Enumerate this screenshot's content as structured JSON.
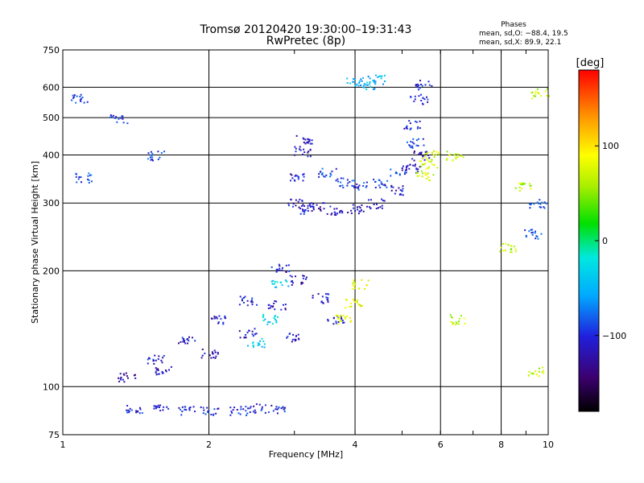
{
  "title_line1": "Tromsø 20120420 19:30:00–19:31:43",
  "title_line2": "RwPretec (8p)",
  "stats": {
    "heading": "Phases",
    "line_o": "mean, sd,O: −88.4, 19.5",
    "line_x": "mean, sd,X:  89.9, 22.1"
  },
  "colorbar": {
    "title": "[deg]",
    "range": [
      -180,
      180
    ],
    "ticks": [
      100,
      0,
      -100
    ],
    "tick_labels": [
      "100",
      "0",
      "−100"
    ],
    "colormap": "rainbow (black → purple → blue → cyan → green → yellow → orange → red)"
  },
  "chart_data": {
    "type": "scatter",
    "xlabel": "Frequency [MHz]",
    "ylabel": "Stationary phase Virtual Height [km]",
    "xscale": "log",
    "yscale": "log",
    "xlim": [
      1,
      10
    ],
    "ylim": [
      75,
      750
    ],
    "xticks": [
      1,
      2,
      4,
      6,
      8,
      10
    ],
    "xtick_labels": [
      "1",
      "2",
      "4",
      "6",
      "8",
      "10"
    ],
    "yticks": [
      75,
      100,
      200,
      300,
      400,
      500,
      600,
      750
    ],
    "ytick_labels": [
      "75",
      "100",
      "200",
      "300",
      "400",
      "500",
      "600",
      "750"
    ],
    "grid": true,
    "color_by": "phase (deg)",
    "groups": [
      {
        "f": [
          1.35,
          1.6,
          2.0,
          2.4,
          2.75
        ],
        "h": [
          106,
          111,
          122,
          138,
          163
        ],
        "phase": -115
      },
      {
        "f": [
          1.55,
          1.8,
          2.1,
          2.4,
          2.8
        ],
        "h": [
          118,
          132,
          150,
          168,
          205
        ],
        "phase": -108
      },
      {
        "f": [
          2.5,
          2.65,
          2.8
        ],
        "h": [
          130,
          150,
          185
        ],
        "phase": -35
      },
      {
        "f": [
          1.4,
          1.6,
          1.8,
          2.0,
          2.3,
          2.5,
          2.75
        ],
        "h": [
          88,
          88,
          87,
          87,
          87,
          88,
          88
        ],
        "phase": -102
      },
      {
        "f": [
          2.95,
          3.05,
          3.4,
          3.65
        ],
        "h": [
          135,
          190,
          170,
          150
        ],
        "phase": -110
      },
      {
        "f": [
          3.0,
          3.05,
          3.1,
          3.15,
          3.2
        ],
        "h": [
          300,
          350,
          410,
          440,
          290
        ],
        "phase": -112
      },
      {
        "f": [
          3.3,
          3.6,
          4.0,
          4.4,
          4.8,
          5.2,
          5.45
        ],
        "h": [
          295,
          288,
          290,
          300,
          325,
          370,
          400
        ],
        "phase": -115
      },
      {
        "f": [
          3.5,
          3.8,
          4.1,
          4.5,
          4.9,
          5.3
        ],
        "h": [
          360,
          340,
          335,
          340,
          365,
          430
        ],
        "phase": -95
      },
      {
        "f": [
          5.25,
          5.4,
          5.5
        ],
        "h": [
          480,
          560,
          610
        ],
        "phase": -105
      },
      {
        "f": [
          3.75,
          3.95,
          4.1
        ],
        "h": [
          150,
          165,
          185
        ],
        "phase": 80
      },
      {
        "f": [
          5.55,
          5.65,
          5.7
        ],
        "h": [
          355,
          380,
          400
        ],
        "phase": 75
      },
      {
        "f": [
          4.0,
          4.2,
          4.4
        ],
        "h": [
          620,
          610,
          630
        ],
        "phase": -50
      },
      {
        "f": [
          1.08,
          1.1,
          1.3,
          1.55,
          9.3,
          9.5
        ],
        "h": [
          560,
          350,
          500,
          400,
          250,
          300
        ],
        "phase": -90
      },
      {
        "f": [
          6.4,
          6.5,
          8.2,
          8.9,
          9.4,
          9.6
        ],
        "h": [
          400,
          150,
          230,
          330,
          110,
          580
        ],
        "phase": 65
      }
    ]
  }
}
